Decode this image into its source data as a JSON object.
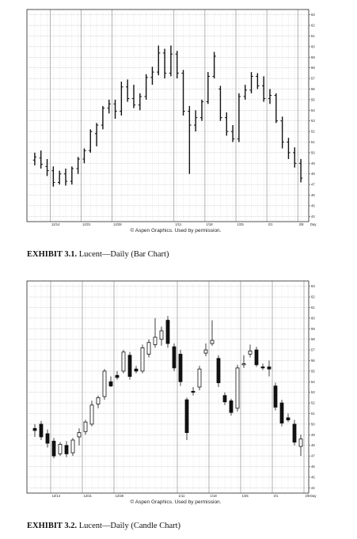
{
  "chart_data": [
    {
      "type": "bar",
      "subtype": "ohlc",
      "caption_label": "EXHIBIT 3.1.",
      "caption_text": "Lucent—Daily (Bar Chart)",
      "credit": "© Aspen Graphics. Used by permission.",
      "x_label": "Day",
      "x_ticks": [
        {
          "label": "12/14",
          "index": 3
        },
        {
          "label": "12/21",
          "index": 8
        },
        {
          "label": "12/28",
          "index": 13
        },
        {
          "label": "1/11",
          "index": 23
        },
        {
          "label": "1/18",
          "index": 28
        },
        {
          "label": "1/25",
          "index": 33
        },
        {
          "label": "2/1",
          "index": 38
        },
        {
          "label": "2/8",
          "index": 43
        }
      ],
      "y_ticks": [
        44,
        45,
        46,
        47,
        48,
        49,
        50,
        51,
        52,
        53,
        54,
        55,
        56,
        57,
        58,
        59,
        60,
        61,
        62,
        63
      ],
      "ylim": [
        43.5,
        63.5
      ],
      "grid": true,
      "bars": [
        {
          "o": 49.3,
          "h": 50.0,
          "l": 48.8,
          "c": 49.6
        },
        {
          "o": 49.5,
          "h": 50.2,
          "l": 48.5,
          "c": 48.9
        },
        {
          "o": 48.7,
          "h": 49.4,
          "l": 47.8,
          "c": 48.3
        },
        {
          "o": 48.3,
          "h": 48.7,
          "l": 46.8,
          "c": 47.2
        },
        {
          "o": 47.2,
          "h": 48.3,
          "l": 47.0,
          "c": 48.0
        },
        {
          "o": 48.0,
          "h": 48.5,
          "l": 46.9,
          "c": 47.3
        },
        {
          "o": 47.3,
          "h": 48.7,
          "l": 47.0,
          "c": 48.5
        },
        {
          "o": 48.5,
          "h": 49.6,
          "l": 48.0,
          "c": 49.4
        },
        {
          "o": 49.4,
          "h": 50.4,
          "l": 49.0,
          "c": 50.2
        },
        {
          "o": 50.2,
          "h": 52.2,
          "l": 50.0,
          "c": 52.0
        },
        {
          "o": 51.8,
          "h": 52.8,
          "l": 50.6,
          "c": 52.6
        },
        {
          "o": 52.6,
          "h": 54.4,
          "l": 52.2,
          "c": 54.2
        },
        {
          "o": 54.2,
          "h": 55.0,
          "l": 53.7,
          "c": 54.6
        },
        {
          "o": 54.6,
          "h": 55.0,
          "l": 53.2,
          "c": 53.9
        },
        {
          "o": 53.9,
          "h": 56.7,
          "l": 53.5,
          "c": 56.2
        },
        {
          "o": 56.2,
          "h": 56.9,
          "l": 54.8,
          "c": 55.1
        },
        {
          "o": 55.1,
          "h": 56.4,
          "l": 54.2,
          "c": 54.5
        },
        {
          "o": 54.5,
          "h": 55.6,
          "l": 54.0,
          "c": 55.3
        },
        {
          "o": 55.3,
          "h": 57.4,
          "l": 55.0,
          "c": 57.1
        },
        {
          "o": 57.1,
          "h": 58.1,
          "l": 56.4,
          "c": 57.6
        },
        {
          "o": 57.6,
          "h": 60.1,
          "l": 57.3,
          "c": 59.4
        },
        {
          "o": 59.4,
          "h": 59.8,
          "l": 57.0,
          "c": 57.5
        },
        {
          "o": 57.5,
          "h": 60.1,
          "l": 57.2,
          "c": 59.3
        },
        {
          "o": 59.3,
          "h": 59.6,
          "l": 57.0,
          "c": 57.5
        },
        {
          "o": 57.5,
          "h": 57.8,
          "l": 53.5,
          "c": 53.9
        },
        {
          "o": 53.9,
          "h": 54.4,
          "l": 48.0,
          "c": 52.6
        },
        {
          "o": 52.6,
          "h": 54.0,
          "l": 52.0,
          "c": 53.3
        },
        {
          "o": 53.3,
          "h": 55.0,
          "l": 53.0,
          "c": 54.8
        },
        {
          "o": 54.8,
          "h": 57.6,
          "l": 54.6,
          "c": 57.2
        },
        {
          "o": 57.2,
          "h": 59.5,
          "l": 57.0,
          "c": 59.1
        },
        {
          "o": 56.0,
          "h": 56.3,
          "l": 53.0,
          "c": 53.3
        },
        {
          "o": 53.3,
          "h": 53.8,
          "l": 51.6,
          "c": 52.0
        },
        {
          "o": 52.0,
          "h": 52.6,
          "l": 51.0,
          "c": 51.3
        },
        {
          "o": 51.3,
          "h": 55.6,
          "l": 51.0,
          "c": 55.3
        },
        {
          "o": 55.3,
          "h": 56.4,
          "l": 55.0,
          "c": 55.9
        },
        {
          "o": 55.9,
          "h": 57.6,
          "l": 55.6,
          "c": 57.2
        },
        {
          "o": 57.2,
          "h": 57.5,
          "l": 56.0,
          "c": 56.3
        },
        {
          "o": 56.3,
          "h": 57.2,
          "l": 54.8,
          "c": 55.1
        },
        {
          "o": 55.1,
          "h": 56.0,
          "l": 54.6,
          "c": 55.4
        },
        {
          "o": 55.4,
          "h": 55.6,
          "l": 52.8,
          "c": 53.0
        },
        {
          "o": 53.0,
          "h": 53.4,
          "l": 50.4,
          "c": 51.0
        },
        {
          "o": 51.0,
          "h": 51.4,
          "l": 49.4,
          "c": 50.0
        },
        {
          "o": 50.0,
          "h": 50.5,
          "l": 48.6,
          "c": 49.0
        },
        {
          "o": 49.0,
          "h": 49.4,
          "l": 47.2,
          "c": 47.6
        }
      ]
    },
    {
      "type": "bar",
      "subtype": "candlestick",
      "caption_label": "EXHIBIT 3.2.",
      "caption_text": "Lucent—Daily (Candle Chart)",
      "credit": "© Aspen Graphics. Used by permission.",
      "x_label": "Day",
      "x_ticks": [
        {
          "label": "12/14",
          "index": 3
        },
        {
          "label": "12/21",
          "index": 8
        },
        {
          "label": "12/28",
          "index": 13
        },
        {
          "label": "1/11",
          "index": 23
        },
        {
          "label": "1/18",
          "index": 28
        },
        {
          "label": "1/25",
          "index": 33
        },
        {
          "label": "2/1",
          "index": 38
        },
        {
          "label": "2/8",
          "index": 43
        }
      ],
      "y_ticks": [
        44,
        45,
        46,
        47,
        48,
        49,
        50,
        51,
        52,
        53,
        54,
        55,
        56,
        57,
        58,
        59,
        60,
        61,
        62,
        63
      ],
      "ylim": [
        43.5,
        63.5
      ],
      "grid": true,
      "bars": [
        {
          "o": 49.6,
          "h": 50.0,
          "l": 48.8,
          "c": 49.4
        },
        {
          "o": 50.0,
          "h": 50.3,
          "l": 48.5,
          "c": 48.8
        },
        {
          "o": 49.1,
          "h": 49.5,
          "l": 47.8,
          "c": 48.2
        },
        {
          "o": 48.4,
          "h": 48.7,
          "l": 46.8,
          "c": 47.0
        },
        {
          "o": 47.2,
          "h": 48.3,
          "l": 47.0,
          "c": 48.1
        },
        {
          "o": 48.0,
          "h": 48.4,
          "l": 46.9,
          "c": 47.2
        },
        {
          "o": 47.3,
          "h": 48.7,
          "l": 47.0,
          "c": 48.5
        },
        {
          "o": 48.8,
          "h": 49.6,
          "l": 48.0,
          "c": 49.2
        },
        {
          "o": 49.3,
          "h": 50.4,
          "l": 49.0,
          "c": 50.2
        },
        {
          "o": 50.0,
          "h": 52.2,
          "l": 49.8,
          "c": 51.8
        },
        {
          "o": 51.9,
          "h": 52.7,
          "l": 51.5,
          "c": 52.5
        },
        {
          "o": 52.6,
          "h": 55.2,
          "l": 52.3,
          "c": 55.0
        },
        {
          "o": 54.0,
          "h": 54.5,
          "l": 53.5,
          "c": 53.6
        },
        {
          "o": 54.6,
          "h": 55.0,
          "l": 54.2,
          "c": 54.4
        },
        {
          "o": 55.0,
          "h": 57.0,
          "l": 54.8,
          "c": 56.8
        },
        {
          "o": 56.5,
          "h": 56.8,
          "l": 54.2,
          "c": 54.5
        },
        {
          "o": 55.2,
          "h": 55.5,
          "l": 54.8,
          "c": 55.0
        },
        {
          "o": 55.0,
          "h": 57.5,
          "l": 54.8,
          "c": 57.2
        },
        {
          "o": 56.6,
          "h": 58.0,
          "l": 56.3,
          "c": 57.7
        },
        {
          "o": 57.5,
          "h": 60.0,
          "l": 57.2,
          "c": 58.2
        },
        {
          "o": 58.0,
          "h": 59.2,
          "l": 57.4,
          "c": 58.8
        },
        {
          "o": 59.8,
          "h": 60.2,
          "l": 57.2,
          "c": 57.6
        },
        {
          "o": 57.3,
          "h": 57.6,
          "l": 55.0,
          "c": 55.3
        },
        {
          "o": 56.6,
          "h": 57.0,
          "l": 53.6,
          "c": 54.0
        },
        {
          "o": 52.3,
          "h": 52.5,
          "l": 48.5,
          "c": 49.2
        },
        {
          "o": 53.1,
          "h": 53.5,
          "l": 52.7,
          "c": 53.0
        },
        {
          "o": 53.5,
          "h": 55.5,
          "l": 53.2,
          "c": 55.2
        },
        {
          "o": 56.7,
          "h": 57.6,
          "l": 56.4,
          "c": 57.0
        },
        {
          "o": 57.6,
          "h": 59.8,
          "l": 57.4,
          "c": 57.9
        },
        {
          "o": 56.2,
          "h": 56.5,
          "l": 53.5,
          "c": 53.9
        },
        {
          "o": 52.7,
          "h": 53.0,
          "l": 51.8,
          "c": 52.1
        },
        {
          "o": 52.2,
          "h": 52.4,
          "l": 50.8,
          "c": 51.1
        },
        {
          "o": 51.5,
          "h": 55.6,
          "l": 51.2,
          "c": 55.3
        },
        {
          "o": 55.6,
          "h": 56.5,
          "l": 55.3,
          "c": 55.7
        },
        {
          "o": 56.6,
          "h": 57.5,
          "l": 56.3,
          "c": 56.9
        },
        {
          "o": 57.0,
          "h": 57.3,
          "l": 55.4,
          "c": 55.6
        },
        {
          "o": 55.4,
          "h": 55.7,
          "l": 55.1,
          "c": 55.3
        },
        {
          "o": 55.4,
          "h": 56.0,
          "l": 54.5,
          "c": 55.2
        },
        {
          "o": 53.6,
          "h": 53.9,
          "l": 51.3,
          "c": 51.6
        },
        {
          "o": 52.0,
          "h": 52.3,
          "l": 49.8,
          "c": 50.1
        },
        {
          "o": 50.6,
          "h": 51.0,
          "l": 50.2,
          "c": 50.4
        },
        {
          "o": 50.0,
          "h": 50.4,
          "l": 48.0,
          "c": 48.3
        },
        {
          "o": 47.9,
          "h": 49.0,
          "l": 47.0,
          "c": 48.6
        }
      ]
    }
  ]
}
